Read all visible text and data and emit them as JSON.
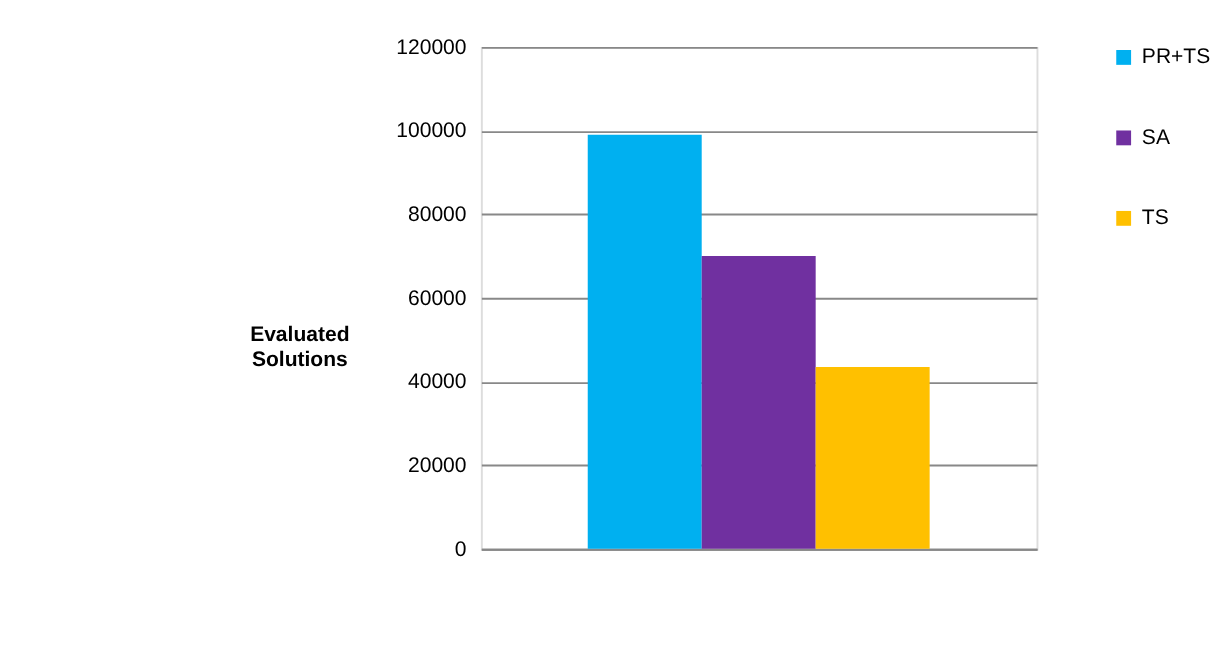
{
  "chart_data": {
    "type": "bar",
    "ylabel": "Evaluated Solutions",
    "categories": [
      null
    ],
    "series": [
      {
        "name": "PR+TS",
        "color": "#00b0f0",
        "values": [
          99000
        ]
      },
      {
        "name": "SA",
        "color": "#7030a0",
        "values": [
          70000
        ]
      },
      {
        "name": "TS",
        "color": "#ffc000",
        "values": [
          43500
        ]
      }
    ],
    "ylim": [
      0,
      120000
    ],
    "yticks": [
      0,
      20000,
      40000,
      60000,
      80000,
      100000,
      120000
    ],
    "grid": "y",
    "legend": "right",
    "tick_labels": "y"
  }
}
